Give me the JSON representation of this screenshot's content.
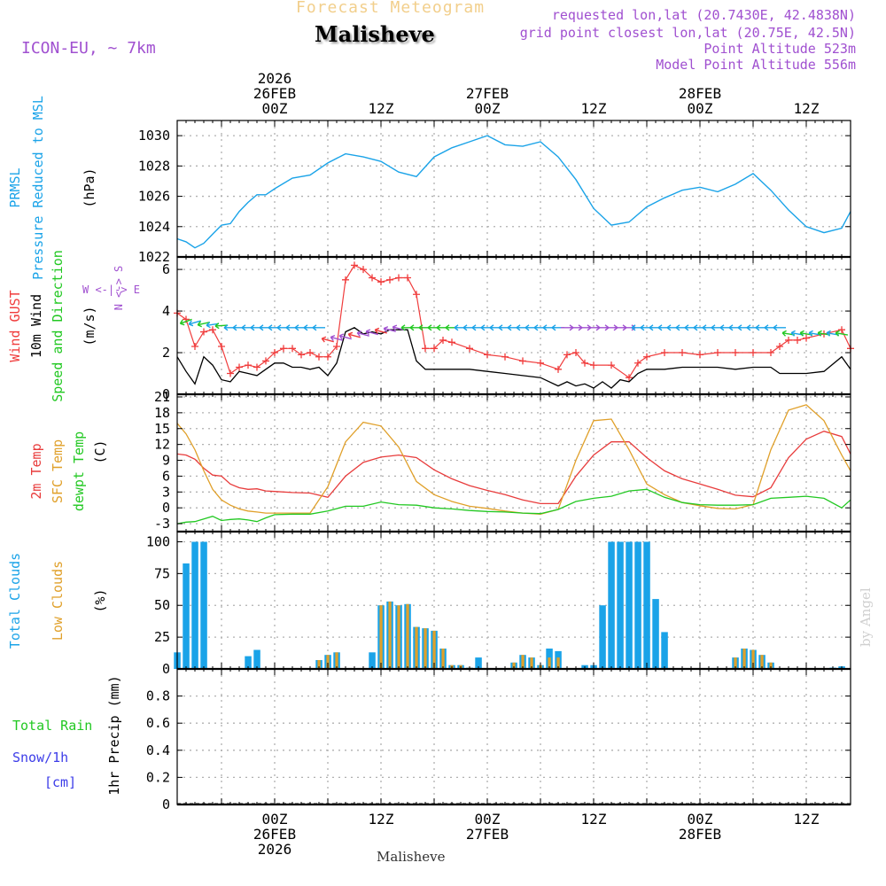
{
  "header": {
    "super_title": "Forecast Meteogram",
    "location": "Malisheve",
    "model": "ICON-EU, ~ 7km",
    "requested": "requested lon,lat (20.7430E, 42.4838N)",
    "grid_point": "grid point closest lon,lat (20.75E, 42.5N)",
    "point_altitude": "Point Altitude 523m",
    "model_altitude": "Model Point Altitude 556m",
    "footer_location": "Malisheve",
    "credit": "by Angel"
  },
  "colors": {
    "pressure": "#1aa3e8",
    "gust": "#f03c3c",
    "wind": "#000000",
    "temp2m": "#e83c3c",
    "sfc": "#e0a02a",
    "dew": "#22c822",
    "total_clouds": "#1aa3e8",
    "low_clouds": "#e0a02a",
    "rain": "#22c822",
    "snow": "#3c3ce8",
    "purple": "#a050d0"
  },
  "time_axis": {
    "top_labels": [
      {
        "t": 0,
        "lines": [
          "2026",
          "26FEB",
          "00Z"
        ]
      },
      {
        "t": 12,
        "lines": [
          "12Z"
        ]
      },
      {
        "t": 24,
        "lines": [
          "27FEB",
          "00Z"
        ]
      },
      {
        "t": 36,
        "lines": [
          "12Z"
        ]
      },
      {
        "t": 48,
        "lines": [
          "28FEB",
          "00Z"
        ]
      },
      {
        "t": 60,
        "lines": [
          "12Z"
        ]
      }
    ],
    "bottom_labels": [
      {
        "t": 0,
        "lines": [
          "00Z",
          "26FEB",
          "2026"
        ]
      },
      {
        "t": 12,
        "lines": [
          "12Z"
        ]
      },
      {
        "t": 24,
        "lines": [
          "00Z",
          "27FEB"
        ]
      },
      {
        "t": 36,
        "lines": [
          "12Z"
        ]
      },
      {
        "t": 48,
        "lines": [
          "00Z",
          "28FEB"
        ]
      },
      {
        "t": 60,
        "lines": [
          "12Z"
        ]
      }
    ],
    "range_hours": [
      -11,
      65
    ]
  },
  "panels": {
    "pressure": {
      "label_lines": [
        "PRMSL",
        "Pressure Reduced to MSL"
      ],
      "unit": "(hPa)",
      "ylim": [
        1022,
        1031
      ],
      "ticks": [
        "1030",
        "1028",
        "1026",
        "1024",
        "1022"
      ]
    },
    "wind": {
      "label_gust": "Wind GUST",
      "label_wind": "10m Wind",
      "label_dir": "Speed and Direction",
      "unit": "(m/s)",
      "ylim": [
        0,
        6.6
      ],
      "ticks": [
        "6",
        "4",
        "2",
        "0"
      ],
      "compass_ns": "N <-> S",
      "compass_we": "W <-|-> E"
    },
    "temp": {
      "label_2m": "2m Temp",
      "label_sfc": "SFC Temp",
      "label_dew": "dewpt Temp",
      "unit": "(C)",
      "ylim": [
        -4.5,
        21.5
      ],
      "ticks": [
        "21",
        "18",
        "15",
        "12",
        "9",
        "6",
        "3",
        "0",
        "-3"
      ]
    },
    "clouds": {
      "label_total": "Total Clouds",
      "label_low": "Low Clouds",
      "unit": "(%)",
      "ylim": [
        0,
        108
      ],
      "ticks": [
        "100",
        "75",
        "50",
        "25",
        "0"
      ]
    },
    "precip": {
      "label_rain": "Total  Rain",
      "label_snow": "Snow/1h",
      "label_cm": "[cm]",
      "unit": "1hr Precip (mm)",
      "ylim": [
        0,
        1.0
      ],
      "ticks": [
        "0.8",
        "0.6",
        "0.4",
        "0.2",
        "0"
      ]
    }
  },
  "chart_data": [
    {
      "type": "line",
      "title": "PRMSL Pressure Reduced to MSL",
      "ylabel": "hPa",
      "ylim": [
        1022,
        1031
      ],
      "series": [
        {
          "name": "PRMSL",
          "x": [
            -11,
            -10,
            -9,
            -8,
            -7,
            -6,
            -5,
            -4,
            -3,
            -2,
            -1,
            0,
            2,
            4,
            6,
            8,
            10,
            12,
            14,
            16,
            18,
            20,
            22,
            24,
            26,
            28,
            30,
            32,
            34,
            36,
            38,
            40,
            42,
            44,
            46,
            48,
            50,
            52,
            54,
            56,
            58,
            60,
            62,
            64,
            65
          ],
          "values": [
            1023.2,
            1023.0,
            1022.6,
            1022.9,
            1023.5,
            1024.1,
            1024.2,
            1025.0,
            1025.6,
            1026.1,
            1026.1,
            1026.5,
            1027.2,
            1027.4,
            1028.2,
            1028.8,
            1028.6,
            1028.3,
            1027.6,
            1027.3,
            1028.6,
            1029.2,
            1029.6,
            1030.0,
            1029.4,
            1029.3,
            1029.6,
            1028.6,
            1027.1,
            1025.2,
            1024.1,
            1024.3,
            1025.3,
            1025.9,
            1026.4,
            1026.6,
            1026.3,
            1026.8,
            1027.5,
            1026.4,
            1025.1,
            1024.0,
            1023.6,
            1023.9,
            1025.0
          ]
        }
      ]
    },
    {
      "type": "line",
      "title": "Wind GUST / 10m Wind Speed and Direction",
      "ylabel": "m/s",
      "ylim": [
        0,
        6.6
      ],
      "series": [
        {
          "name": "Wind GUST",
          "x": [
            -11,
            -10,
            -9,
            -8,
            -7,
            -6,
            -5,
            -4,
            -3,
            -2,
            -1,
            0,
            1,
            2,
            3,
            4,
            5,
            6,
            7,
            8,
            9,
            10,
            11,
            12,
            13,
            14,
            15,
            16,
            17,
            18,
            19,
            20,
            22,
            24,
            26,
            28,
            30,
            32,
            33,
            34,
            35,
            36,
            38,
            40,
            41,
            42,
            44,
            46,
            48,
            50,
            52,
            54,
            56,
            57,
            58,
            59,
            60,
            62,
            64,
            65
          ],
          "values": [
            3.9,
            3.6,
            2.3,
            3.0,
            3.1,
            2.3,
            1.0,
            1.3,
            1.4,
            1.3,
            1.6,
            2.0,
            2.2,
            2.2,
            1.9,
            2.0,
            1.8,
            1.8,
            2.3,
            5.5,
            6.2,
            6.0,
            5.6,
            5.4,
            5.5,
            5.6,
            5.6,
            4.8,
            2.2,
            2.2,
            2.6,
            2.5,
            2.2,
            1.9,
            1.8,
            1.6,
            1.5,
            1.2,
            1.9,
            2.0,
            1.5,
            1.4,
            1.4,
            0.8,
            1.5,
            1.8,
            2.0,
            2.0,
            1.9,
            2.0,
            2.0,
            2.0,
            2.0,
            2.3,
            2.6,
            2.6,
            2.7,
            2.9,
            3.1,
            2.2
          ]
        },
        {
          "name": "10m Wind",
          "x": [
            -11,
            -10,
            -9,
            -8,
            -7,
            -6,
            -5,
            -4,
            -3,
            -2,
            -1,
            0,
            1,
            2,
            3,
            4,
            5,
            6,
            7,
            8,
            9,
            10,
            11,
            12,
            13,
            14,
            15,
            16,
            17,
            18,
            20,
            22,
            24,
            26,
            28,
            30,
            32,
            33,
            34,
            35,
            36,
            37,
            38,
            39,
            40,
            41,
            42,
            44,
            46,
            48,
            50,
            52,
            54,
            56,
            57,
            58,
            60,
            62,
            64,
            65
          ],
          "values": [
            1.8,
            1.1,
            0.5,
            1.8,
            1.4,
            0.7,
            0.6,
            1.1,
            1.0,
            0.9,
            1.2,
            1.5,
            1.5,
            1.3,
            1.3,
            1.2,
            1.3,
            0.9,
            1.5,
            3.0,
            3.2,
            2.9,
            3.0,
            2.9,
            3.1,
            3.1,
            3.1,
            1.6,
            1.2,
            1.2,
            1.2,
            1.2,
            1.1,
            1.0,
            0.9,
            0.8,
            0.4,
            0.6,
            0.4,
            0.5,
            0.3,
            0.6,
            0.3,
            0.7,
            0.6,
            1.0,
            1.2,
            1.2,
            1.3,
            1.3,
            1.3,
            1.2,
            1.3,
            1.3,
            1.0,
            1.0,
            1.0,
            1.1,
            1.8,
            1.2
          ]
        }
      ]
    },
    {
      "type": "line",
      "title": "2m Temp / SFC Temp / dewpt Temp",
      "ylabel": "C",
      "ylim": [
        -4.5,
        21.5
      ],
      "series": [
        {
          "name": "2m Temp",
          "x": [
            -11,
            -10,
            -9,
            -8,
            -7,
            -6,
            -5,
            -4,
            -3,
            -2,
            -1,
            0,
            2,
            4,
            6,
            8,
            10,
            12,
            14,
            16,
            18,
            20,
            22,
            24,
            26,
            28,
            30,
            32,
            34,
            36,
            38,
            40,
            42,
            44,
            46,
            48,
            50,
            52,
            54,
            56,
            58,
            60,
            62,
            64,
            65
          ],
          "values": [
            10.2,
            10.0,
            9.2,
            7.5,
            6.2,
            6.0,
            4.5,
            3.8,
            3.5,
            3.6,
            3.2,
            3.1,
            2.9,
            2.8,
            2.0,
            6.0,
            8.6,
            9.6,
            10.0,
            9.5,
            7.2,
            5.5,
            4.2,
            3.3,
            2.5,
            1.5,
            0.8,
            0.8,
            6.0,
            10.0,
            12.5,
            12.5,
            9.5,
            7.0,
            5.5,
            4.5,
            3.5,
            2.4,
            2.1,
            3.8,
            9.5,
            13.0,
            14.5,
            13.5,
            10.2
          ]
        },
        {
          "name": "SFC Temp",
          "x": [
            -11,
            -10,
            -9,
            -8,
            -7,
            -6,
            -5,
            -4,
            -3,
            -2,
            -1,
            0,
            2,
            4,
            6,
            8,
            10,
            12,
            14,
            16,
            18,
            20,
            22,
            24,
            26,
            28,
            30,
            32,
            34,
            36,
            38,
            40,
            42,
            44,
            46,
            48,
            50,
            52,
            54,
            56,
            58,
            60,
            62,
            64,
            65
          ],
          "values": [
            16.0,
            14.0,
            11.0,
            7.0,
            3.5,
            1.5,
            0.5,
            -0.2,
            -0.6,
            -0.8,
            -1.0,
            -1.0,
            -1.0,
            -1.0,
            4.0,
            12.5,
            16.2,
            15.5,
            11.5,
            5.0,
            2.5,
            1.2,
            0.3,
            -0.1,
            -0.6,
            -1.0,
            -1.2,
            -0.3,
            9.0,
            16.5,
            16.8,
            11.0,
            4.5,
            2.5,
            1.0,
            0.4,
            -0.1,
            -0.2,
            0.6,
            11.0,
            18.5,
            19.5,
            16.5,
            10.0,
            7.0
          ]
        },
        {
          "name": "dewpt Temp",
          "x": [
            -11,
            -10,
            -9,
            -8,
            -7,
            -6,
            -5,
            -4,
            -3,
            -2,
            -1,
            0,
            2,
            4,
            6,
            8,
            10,
            12,
            14,
            16,
            18,
            20,
            22,
            24,
            26,
            28,
            30,
            32,
            34,
            36,
            38,
            40,
            42,
            44,
            46,
            48,
            50,
            52,
            54,
            56,
            58,
            60,
            62,
            64,
            65
          ],
          "values": [
            -3.0,
            -2.7,
            -2.6,
            -2.1,
            -1.6,
            -2.4,
            -2.2,
            -2.1,
            -2.3,
            -2.6,
            -1.9,
            -1.3,
            -1.2,
            -1.2,
            -0.6,
            0.3,
            0.3,
            1.1,
            0.6,
            0.5,
            0.0,
            -0.2,
            -0.5,
            -0.7,
            -0.8,
            -1.0,
            -1.1,
            -0.3,
            1.2,
            1.8,
            2.2,
            3.2,
            3.5,
            2.0,
            1.0,
            0.6,
            0.5,
            0.5,
            0.6,
            1.8,
            2.0,
            2.2,
            1.8,
            0.0,
            1.5
          ]
        }
      ]
    },
    {
      "type": "bar",
      "title": "Total Clouds / Low Clouds",
      "ylabel": "%",
      "ylim": [
        0,
        108
      ],
      "x": [
        -11,
        -10,
        -9,
        -8,
        -7,
        -6,
        -5,
        -4,
        -3,
        -2,
        -1,
        0,
        1,
        2,
        3,
        4,
        5,
        6,
        7,
        8,
        9,
        10,
        11,
        12,
        13,
        14,
        15,
        16,
        17,
        18,
        19,
        20,
        21,
        22,
        23,
        24,
        25,
        26,
        27,
        28,
        29,
        30,
        31,
        32,
        33,
        34,
        35,
        36,
        37,
        38,
        39,
        40,
        41,
        42,
        43,
        44,
        45,
        46,
        47,
        48,
        49,
        50,
        51,
        52,
        53,
        54,
        55,
        56,
        57,
        58,
        59,
        60,
        61,
        62,
        63,
        64,
        65
      ],
      "series": [
        {
          "name": "Total Clouds",
          "values": [
            13,
            83,
            100,
            100,
            0,
            0,
            0,
            0,
            10,
            15,
            0,
            0,
            0,
            0,
            0,
            0,
            7,
            11,
            13,
            0,
            0,
            0,
            13,
            50,
            53,
            50,
            51,
            33,
            32,
            30,
            16,
            3,
            3,
            1,
            9,
            0,
            0,
            0,
            5,
            11,
            9,
            3,
            16,
            14,
            0,
            0,
            3,
            3,
            50,
            100,
            100,
            100,
            100,
            100,
            55,
            29,
            0,
            0,
            0,
            0,
            0,
            0,
            0,
            9,
            16,
            15,
            11,
            5,
            0,
            0,
            0,
            0,
            0,
            0,
            1,
            2,
            0
          ]
        },
        {
          "name": "Low Clouds",
          "values": [
            0,
            0,
            0,
            0,
            0,
            0,
            0,
            0,
            0,
            0,
            0,
            0,
            0,
            0,
            0,
            0,
            7,
            11,
            13,
            0,
            0,
            0,
            0,
            50,
            53,
            50,
            51,
            33,
            32,
            30,
            16,
            3,
            3,
            1,
            0,
            0,
            0,
            0,
            5,
            11,
            9,
            3,
            9,
            9,
            0,
            0,
            0,
            0,
            0,
            0,
            0,
            0,
            0,
            0,
            0,
            0,
            0,
            0,
            0,
            0,
            0,
            0,
            0,
            9,
            16,
            15,
            11,
            5,
            0,
            0,
            0,
            0,
            0,
            0,
            0,
            0,
            0
          ]
        }
      ]
    },
    {
      "type": "bar",
      "title": "1hr Precip",
      "ylabel": "1hr Precip (mm)",
      "ylim": [
        0,
        1.0
      ],
      "series": [
        {
          "name": "Total Rain",
          "values": []
        },
        {
          "name": "Snow/1h",
          "values": []
        }
      ]
    }
  ]
}
